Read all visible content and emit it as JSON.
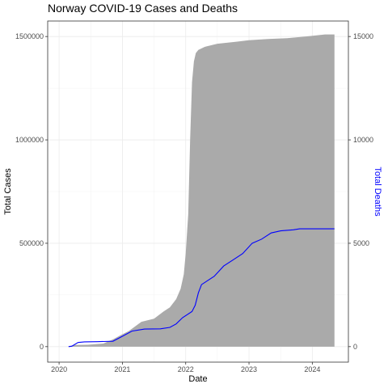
{
  "chart_data": {
    "type": "area",
    "title": "Norway COVID-19 Cases and Deaths",
    "xlabel": "Date",
    "ylabel": "Total Cases",
    "y2label": "Total Deaths",
    "xlim": [
      2019.82,
      2024.57
    ],
    "ylim": [
      -75000,
      1575000
    ],
    "y2lim": [
      -750,
      15750
    ],
    "x_ticks": [
      2020,
      2021,
      2022,
      2023,
      2024
    ],
    "x_tick_labels": [
      "2020",
      "2021",
      "2022",
      "2023",
      "2024"
    ],
    "y_ticks": [
      0,
      500000,
      1000000,
      1500000
    ],
    "y_tick_labels": [
      "0",
      "500000",
      "1000000",
      "1500000"
    ],
    "y2_ticks": [
      0,
      5000,
      10000,
      15000
    ],
    "y2_tick_labels": [
      "0",
      "5000",
      "10000",
      "15000"
    ],
    "grid": true,
    "series": [
      {
        "name": "Total Cases",
        "kind": "area",
        "color": "#aaaaaa",
        "axis": "left",
        "x": [
          2020.15,
          2020.25,
          2020.45,
          2020.7,
          2020.85,
          2021.0,
          2021.1,
          2021.3,
          2021.5,
          2021.65,
          2021.75,
          2021.85,
          2021.92,
          2021.97,
          2022.0,
          2022.04,
          2022.07,
          2022.1,
          2022.13,
          2022.16,
          2022.2,
          2022.3,
          2022.5,
          2022.8,
          2023.0,
          2023.3,
          2023.6,
          2023.9,
          2024.2,
          2024.35
        ],
        "y": [
          2000,
          8000,
          9000,
          15000,
          35000,
          60000,
          75000,
          120000,
          135000,
          170000,
          190000,
          230000,
          280000,
          350000,
          450000,
          640000,
          1000000,
          1280000,
          1380000,
          1420000,
          1435000,
          1450000,
          1465000,
          1475000,
          1482000,
          1488000,
          1492000,
          1500000,
          1510000,
          1510000
        ]
      },
      {
        "name": "Total Deaths",
        "kind": "line",
        "color": "#0000ff",
        "axis": "right",
        "x": [
          2020.15,
          2020.2,
          2020.3,
          2020.4,
          2020.6,
          2020.85,
          2021.0,
          2021.15,
          2021.35,
          2021.6,
          2021.75,
          2021.85,
          2021.95,
          2022.1,
          2022.15,
          2022.2,
          2022.25,
          2022.35,
          2022.45,
          2022.6,
          2022.75,
          2022.9,
          2023.05,
          2023.2,
          2023.35,
          2023.5,
          2023.7,
          2023.8,
          2024.0,
          2024.2,
          2024.35
        ],
        "y": [
          0,
          20,
          200,
          230,
          240,
          260,
          500,
          750,
          850,
          860,
          930,
          1100,
          1400,
          1700,
          2000,
          2600,
          3000,
          3200,
          3400,
          3900,
          4200,
          4500,
          5000,
          5200,
          5500,
          5600,
          5650,
          5700,
          5700,
          5700,
          5700
        ]
      }
    ]
  }
}
